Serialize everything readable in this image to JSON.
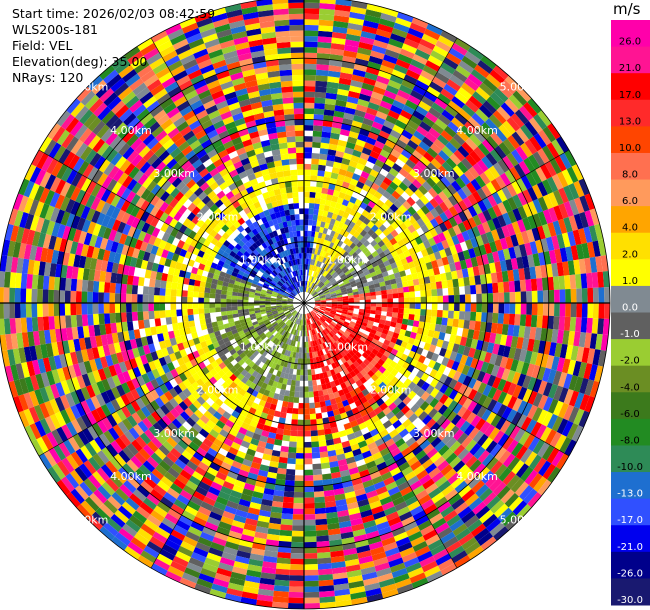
{
  "header": {
    "start_time": "Start time: 2026/02/03 08:42:59",
    "instrument": "WLS200s-181",
    "field": "Field: VEL",
    "elevation": "Elevation(deg): 35.00",
    "nrays": "NRays: 120"
  },
  "chart_data": {
    "type": "heatmap",
    "projection": "polar (PPI scan)",
    "title": "",
    "range_ring_labels": [
      "1.00km",
      "2.00km",
      "3.00km",
      "4.00km",
      "5.00km"
    ],
    "range_rings_km": [
      1,
      2,
      3,
      4,
      5
    ],
    "max_range_km": 5,
    "n_rays": 120,
    "grid": true,
    "colorbar": {
      "unit": "m/s",
      "tick_labels": [
        "26.0",
        "21.0",
        "17.0",
        "13.0",
        "10.0",
        "8.0",
        "6.0",
        "4.0",
        "2.0",
        "1.0",
        "0.0",
        "-1.0",
        "-2.0",
        "-4.0",
        "-6.0",
        "-8.0",
        "-10.0",
        "-13.0",
        "-17.0",
        "-21.0",
        "-26.0",
        "-30.0"
      ],
      "colors": [
        "#ff00aa",
        "#ff1493",
        "#ff0000",
        "#ff2a2a",
        "#ff4500",
        "#ff7050",
        "#ff9a5c",
        "#ffa500",
        "#ffe000",
        "#ffff00",
        "#808a92",
        "#606060",
        "#9acd32",
        "#6b8e23",
        "#3c7a1c",
        "#228b22",
        "#2e8b57",
        "#1e6fd0",
        "#3050ff",
        "#0000ee",
        "#00008b",
        "#191970"
      ]
    }
  }
}
